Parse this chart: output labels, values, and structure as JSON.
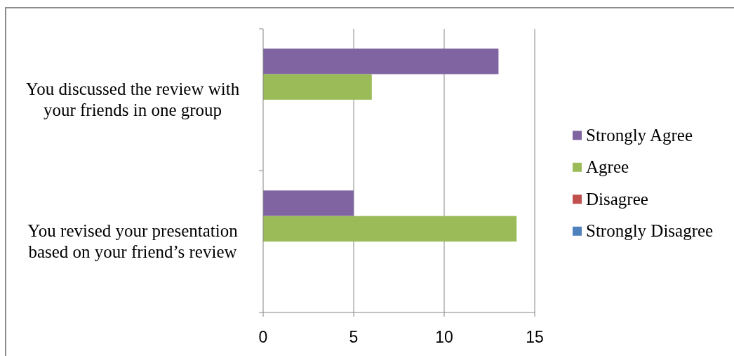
{
  "chart_data": {
    "type": "bar",
    "orientation": "horizontal",
    "categories": [
      "You discussed the review with your friends in one group",
      "You revised your presentation based on your friend’s review"
    ],
    "series": [
      {
        "name": "Strongly Agree",
        "color": "#8064a2",
        "values": [
          13,
          5
        ]
      },
      {
        "name": "Agree",
        "color": "#9bbb59",
        "values": [
          6,
          14
        ]
      },
      {
        "name": "Disagree",
        "color": "#c0504d",
        "values": [
          0,
          0
        ]
      },
      {
        "name": "Strongly Disagree",
        "color": "#4f81bd",
        "values": [
          0,
          0
        ]
      }
    ],
    "xlim": [
      0,
      15
    ],
    "xticks": [
      0,
      5,
      10,
      15
    ],
    "grid": "x",
    "legend": "right"
  }
}
